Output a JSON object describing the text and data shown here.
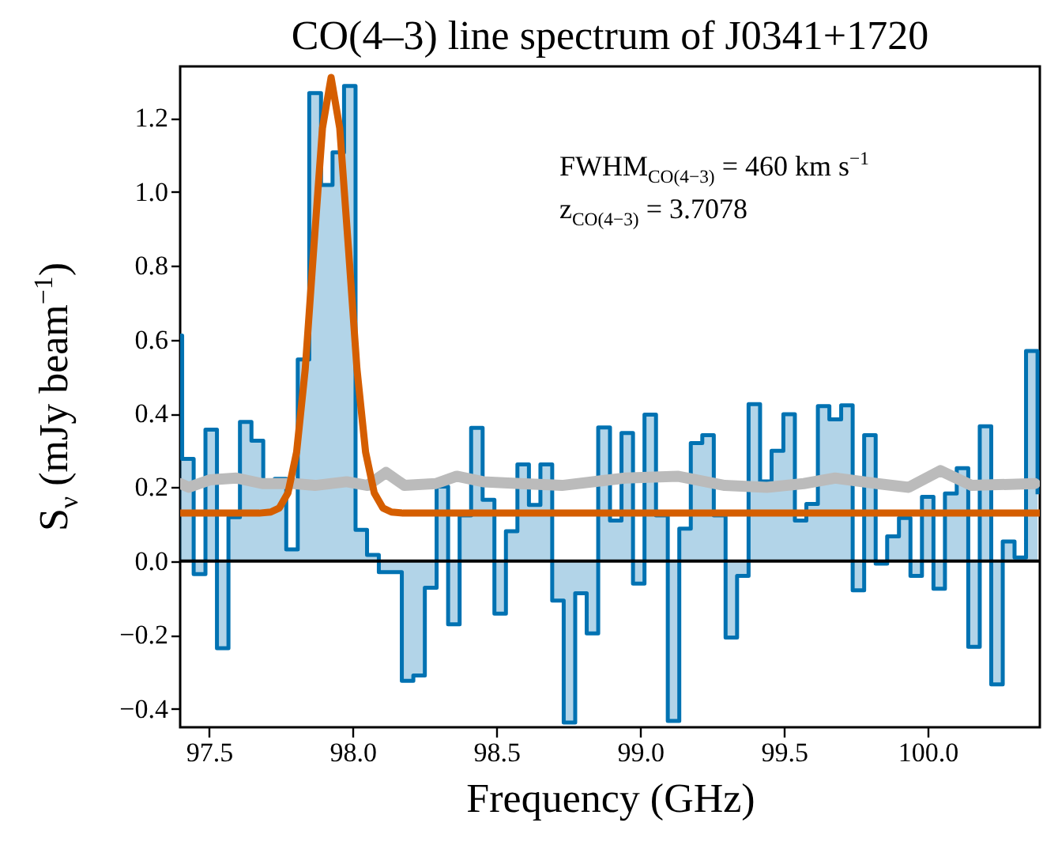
{
  "chart_data": {
    "type": "line",
    "title": "CO(4–3) line spectrum of J0341+1720",
    "xlabel": "Frequency (GHz)",
    "ylabel": "S$_{ν}$ (mJy beam$^{−1}$)",
    "annotations": [
      "FWHM$_{CO(4−3)}$ = 460 km s$^{−1}$",
      "z$_{CO(4−3)}$ = 3.7078"
    ],
    "xlim": [
      97.4,
      100.39
    ],
    "ylim": [
      -0.45,
      1.34
    ],
    "xticks": [
      97.5,
      {
        "value": 98,
        "label": "98.0"
      },
      98.5,
      {
        "value": 99,
        "label": "99.0"
      },
      99.5,
      {
        "value": 100,
        "label": "100.0"
      }
    ],
    "yticks": [
      {
        "value": -0.4,
        "label": "−0.4"
      },
      {
        "value": -0.2,
        "label": "−0.2"
      },
      {
        "value": 0,
        "label": "0.0"
      },
      {
        "value": 0.2,
        "label": "0.2"
      },
      {
        "value": 0.4,
        "label": "0.4"
      },
      {
        "value": 0.6,
        "label": "0.6"
      },
      {
        "value": 0.8,
        "label": "0.8"
      },
      {
        "value": 1.0,
        "label": "1.0"
      },
      {
        "value": 1.2,
        "label": "1.2"
      }
    ],
    "ref_lines": [
      {
        "axis": "y",
        "value": 0,
        "color": "#000000"
      }
    ],
    "series": [
      {
        "type": "step",
        "color": "#0072b2",
        "x": [
          97.4,
          97.407,
          97.447,
          97.488,
          97.528,
          97.568,
          97.608,
          97.648,
          97.689,
          97.729,
          97.769,
          97.809,
          97.849,
          97.89,
          97.93,
          97.97,
          98.01,
          98.05,
          98.091,
          98.131,
          98.171,
          98.211,
          98.251,
          98.292,
          98.332,
          98.372,
          98.412,
          98.452,
          98.493,
          98.533,
          98.573,
          98.613,
          98.653,
          98.694,
          98.734,
          98.774,
          98.814,
          98.854,
          98.895,
          98.935,
          98.975,
          99.015,
          99.055,
          99.096,
          99.136,
          99.176,
          99.216,
          99.256,
          99.297,
          99.337,
          99.377,
          99.417,
          99.457,
          99.498,
          99.538,
          99.578,
          99.618,
          99.658,
          99.699,
          99.739,
          99.779,
          99.819,
          99.859,
          99.9,
          99.94,
          99.98,
          100.02,
          100.06,
          100.101,
          100.141,
          100.181,
          100.221,
          100.261,
          100.302,
          100.342,
          100.382
        ],
        "values": [
          0.611,
          0.277,
          -0.035,
          0.356,
          -0.236,
          0.119,
          0.377,
          0.326,
          0.209,
          0.223,
          0.032,
          0.546,
          1.268,
          1.019,
          1.107,
          1.287,
          0.085,
          0.017,
          -0.03,
          -0.03,
          -0.324,
          -0.31,
          -0.072,
          0.202,
          -0.171,
          0.124,
          0.361,
          0.166,
          -0.142,
          0.081,
          0.262,
          0.152,
          0.262,
          -0.107,
          -0.437,
          -0.087,
          -0.196,
          0.362,
          0.11,
          0.347,
          -0.061,
          0.397,
          0.124,
          -0.433,
          0.088,
          0.32,
          0.341,
          0.124,
          -0.207,
          -0.04,
          0.425,
          0.216,
          0.299,
          0.398,
          0.11,
          0.155,
          0.42,
          0.384,
          0.422,
          -0.079,
          0.341,
          -0.007,
          0.067,
          0.117,
          -0.04,
          0.174,
          -0.075,
          0.183,
          0.252,
          -0.232,
          0.365,
          -0.334,
          0.053,
          0.01,
          0.569,
          0.181
        ]
      },
      {
        "color": "#bbbbbb",
        "x": [
          97.4,
          97.43,
          97.503,
          97.595,
          97.686,
          97.796,
          97.869,
          97.979,
          98.052,
          98.116,
          98.18,
          98.289,
          98.362,
          98.454,
          98.582,
          98.728,
          98.947,
          99.13,
          99.294,
          99.441,
          99.569,
          99.678,
          99.824,
          99.934,
          100.044,
          100.153,
          100.373
        ],
        "values": [
          0.21,
          0.2,
          0.22,
          0.225,
          0.21,
          0.21,
          0.205,
          0.215,
          0.205,
          0.24,
          0.205,
          0.21,
          0.23,
          0.215,
          0.21,
          0.205,
          0.225,
          0.23,
          0.205,
          0.2,
          0.21,
          0.225,
          0.21,
          0.2,
          0.245,
          0.205,
          0.21
        ]
      },
      {
        "color": "#d55e00",
        "x": [
          97.4,
          97.675,
          97.715,
          97.745,
          97.775,
          97.805,
          97.835,
          97.865,
          97.895,
          97.925,
          97.955,
          97.985,
          98.015,
          98.045,
          98.075,
          98.105,
          98.135,
          98.175,
          100.39
        ],
        "values": [
          0.13,
          0.13,
          0.133,
          0.144,
          0.185,
          0.295,
          0.52,
          0.851,
          1.173,
          1.31,
          1.173,
          0.851,
          0.52,
          0.295,
          0.185,
          0.144,
          0.133,
          0.13,
          0.13
        ]
      }
    ]
  }
}
